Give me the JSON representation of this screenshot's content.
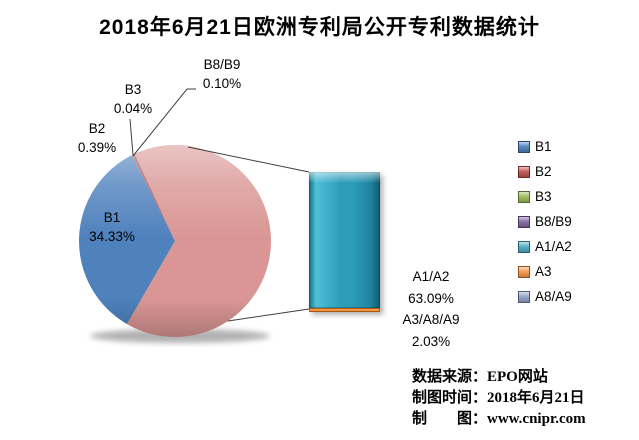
{
  "chart_data": {
    "type": "pie",
    "variant": "pie-of-pie",
    "title": "2018年6月21日欧洲专利局公开专利数据统计",
    "start_angle_deg": 210,
    "slices": [
      {
        "label": "B1",
        "value": 34.33,
        "color": "#4F81BD",
        "pct_text": "34.33%"
      },
      {
        "label": "B2",
        "value": 0.39,
        "color": "#C0504D",
        "pct_text": "0.39%"
      },
      {
        "label": "B3",
        "value": 0.04,
        "color": "#9BBB59",
        "pct_text": "0.04%"
      },
      {
        "label": "B8/B9",
        "value": 0.1,
        "color": "#8064A2",
        "pct_text": "0.10%"
      },
      {
        "label": "other-group",
        "value": 65.12,
        "color": "#D99694",
        "pct_text": ""
      }
    ],
    "secondary_bar": [
      {
        "label": "A1/A2",
        "value": 63.09,
        "color": "teal",
        "pct_text": "63.09%"
      },
      {
        "label": "A3/A8/A9",
        "value": 2.03,
        "color": "orange",
        "pct_text": "2.03%"
      }
    ],
    "legend": {
      "position": "right",
      "items": [
        {
          "label": "B1",
          "color": "#4F81BD"
        },
        {
          "label": "B2",
          "color": "#C0504D"
        },
        {
          "label": "B3",
          "color": "#9BBB59"
        },
        {
          "label": "B8/B9",
          "color": "#8064A2"
        },
        {
          "label": "A1/A2",
          "color": "#4BACC6"
        },
        {
          "label": "A3",
          "color": "#F79646"
        },
        {
          "label": "A8/A9",
          "color": "#90A0C8"
        }
      ]
    }
  },
  "labels": {
    "b8b9": {
      "name": "B8/B9",
      "pct": "0.10%"
    },
    "b3": {
      "name": "B3",
      "pct": "0.04%"
    },
    "b2": {
      "name": "B2",
      "pct": "0.39%"
    },
    "b1": {
      "name": "B1",
      "pct": "34.33%"
    },
    "bar": {
      "line1": "A1/A2",
      "line2": "63.09%",
      "line3": "A3/A8/A9",
      "line4": "2.03%"
    }
  },
  "footer": {
    "source_label": "数据来源：",
    "source_value": "EPO网站",
    "date_label": "制图时间：",
    "date_value": "2018年6月21日",
    "credit_label": "制　　图：",
    "credit_value": "www.cnipr.com"
  }
}
